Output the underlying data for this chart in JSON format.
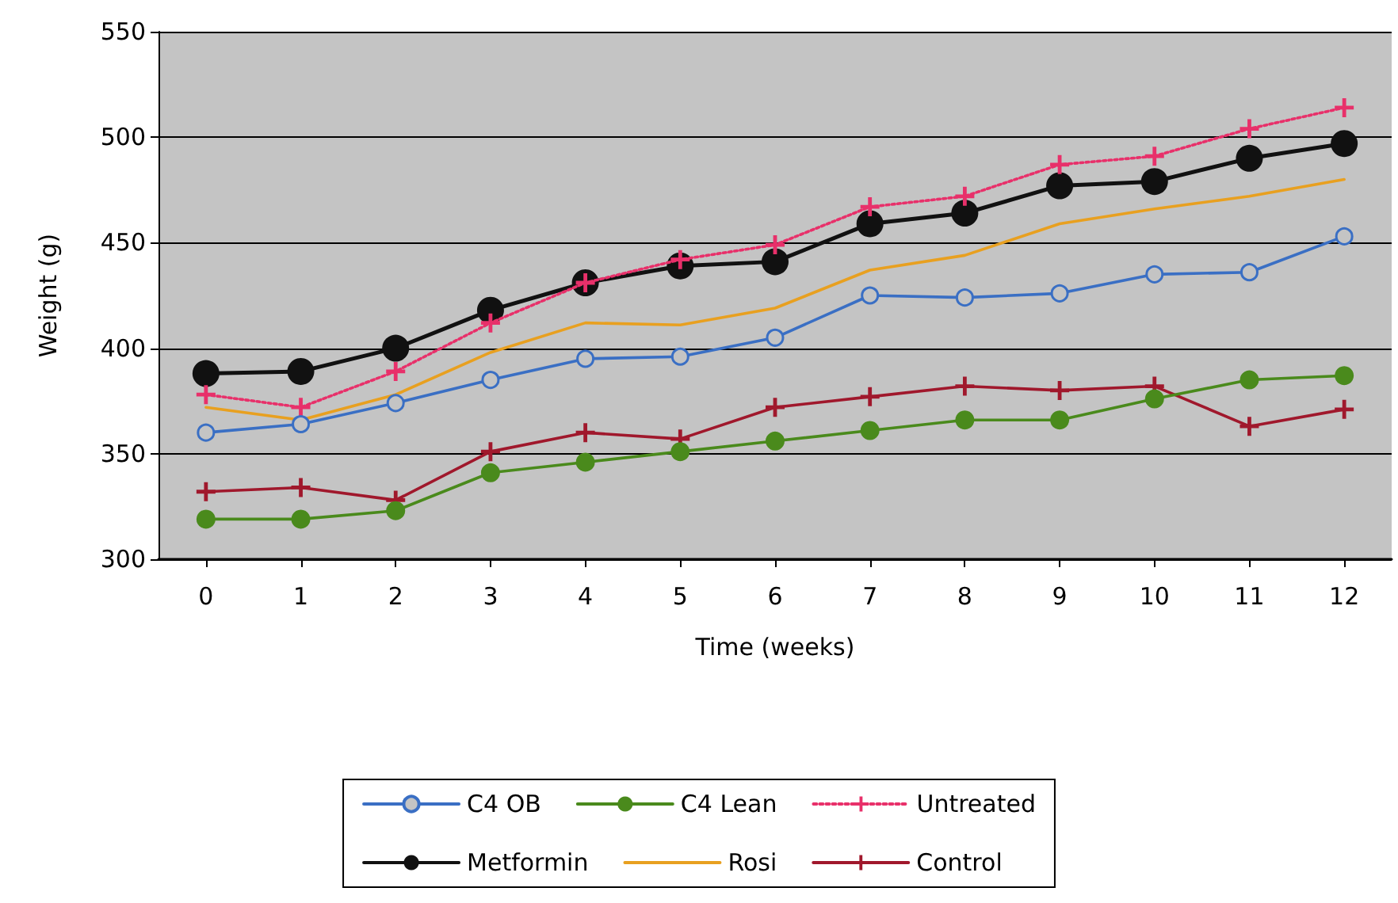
{
  "chart_data": {
    "type": "line",
    "xlabel": "Time (weeks)",
    "ylabel": "Weight (g)",
    "x": [
      0,
      1,
      2,
      3,
      4,
      5,
      6,
      7,
      8,
      9,
      10,
      11,
      12
    ],
    "xlim": [
      -0.5,
      12.5
    ],
    "xticks": [
      0,
      1,
      2,
      3,
      4,
      5,
      6,
      7,
      8,
      9,
      10,
      11,
      12
    ],
    "ylim": [
      300,
      550
    ],
    "yticks": [
      300,
      350,
      400,
      450,
      500,
      550
    ],
    "grid": "y",
    "legend": "bottom",
    "series": [
      {
        "name": "C4 OB",
        "color": "#3a6fc4",
        "marker": "circle",
        "line_style": "solid",
        "values": [
          360,
          364,
          374,
          385,
          395,
          396,
          405,
          425,
          424,
          426,
          435,
          436,
          453
        ]
      },
      {
        "name": "C4 Lean",
        "color": "#4a8a1c",
        "marker": "circle",
        "line_style": "solid",
        "values": [
          319,
          319,
          323,
          341,
          346,
          351,
          356,
          361,
          366,
          366,
          376,
          385,
          387
        ]
      },
      {
        "name": "Untreated",
        "color": "#e8306a",
        "marker": "cross",
        "line_style": "dotted",
        "values": [
          378,
          372,
          389,
          412,
          431,
          442,
          449,
          467,
          472,
          487,
          491,
          504,
          514
        ]
      },
      {
        "name": "Metformin",
        "color": "#111111",
        "marker": "circle",
        "line_style": "solid",
        "values": [
          388,
          389,
          400,
          418,
          431,
          439,
          441,
          459,
          464,
          477,
          479,
          490,
          497
        ]
      },
      {
        "name": "Rosi",
        "color": "#e8a020",
        "marker": "none",
        "line_style": "solid",
        "values": [
          372,
          366,
          378,
          398,
          412,
          411,
          419,
          437,
          444,
          459,
          466,
          472,
          480
        ]
      },
      {
        "name": "Control",
        "color": "#a0182c",
        "marker": "cross",
        "line_style": "solid",
        "values": [
          332,
          334,
          328,
          351,
          360,
          357,
          372,
          377,
          382,
          380,
          382,
          363,
          371
        ]
      }
    ]
  }
}
